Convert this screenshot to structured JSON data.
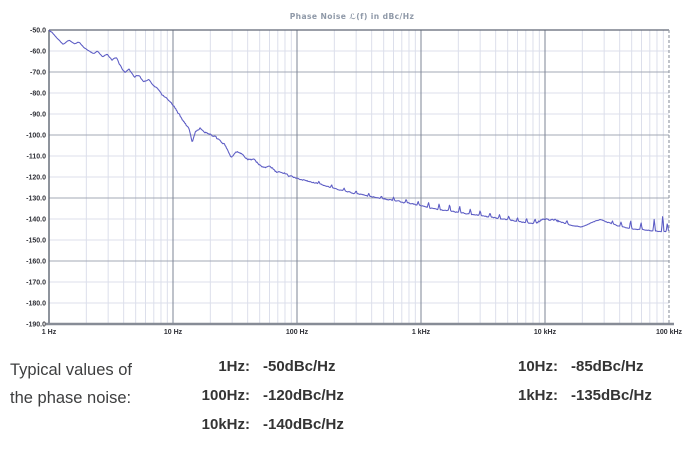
{
  "chart_data": {
    "type": "line",
    "title": "Phase Noise ℒ(f) in dBc/Hz",
    "xscale": "log",
    "xlim_hz": [
      1,
      100000
    ],
    "ylim_dbc": [
      -190,
      -50
    ],
    "grid": "on",
    "legend": "none",
    "x_ticks": [
      {
        "hz": 1,
        "label": "1 Hz"
      },
      {
        "hz": 10,
        "label": "10 Hz"
      },
      {
        "hz": 100,
        "label": "100 Hz"
      },
      {
        "hz": 1000,
        "label": "1 kHz"
      },
      {
        "hz": 10000,
        "label": "10 kHz"
      },
      {
        "hz": 100000,
        "label": "100 kHz"
      }
    ],
    "y_ticks": [
      {
        "value": -50,
        "label": "-50.0"
      },
      {
        "value": -60,
        "label": "-60.0"
      },
      {
        "value": -70,
        "label": "-70.0"
      },
      {
        "value": -80,
        "label": "-80.0"
      },
      {
        "value": -90,
        "label": "-90.0"
      },
      {
        "value": -100,
        "label": "-100.0"
      },
      {
        "value": -110,
        "label": "-110.0"
      },
      {
        "value": -120,
        "label": "-120.0"
      },
      {
        "value": -130,
        "label": "-130.0"
      },
      {
        "value": -140,
        "label": "-140.0"
      },
      {
        "value": -150,
        "label": "-150.0"
      },
      {
        "value": -160,
        "label": "-160.0"
      },
      {
        "value": -170,
        "label": "-170.0"
      },
      {
        "value": -180,
        "label": "-180.0"
      },
      {
        "value": -190,
        "label": "-190.0"
      }
    ],
    "major_hline_values": [
      -70,
      -100,
      -130,
      -160
    ],
    "colors": {
      "trace": "#5b5bc4",
      "grid_minor": "#dcdfeb",
      "grid_major": "#a3a8b5",
      "grid_decade": "#7d8495",
      "frame": "#5f6673",
      "baseline": "#878c96",
      "right_dashed": "#989ea8",
      "tick_text": "#2e2f36",
      "title_text": "#8f99a8"
    },
    "series": [
      {
        "name": "phase noise trace",
        "color": "#5b5bc4",
        "points_hz_dbc": [
          [
            1.0,
            -50.3
          ],
          [
            1.05,
            -51.0
          ],
          [
            1.15,
            -53.5
          ],
          [
            1.3,
            -56.8
          ],
          [
            1.45,
            -54.8
          ],
          [
            1.6,
            -56.6
          ],
          [
            1.75,
            -55.8
          ],
          [
            1.9,
            -58.2
          ],
          [
            2.1,
            -60.0
          ],
          [
            2.3,
            -61.2
          ],
          [
            2.45,
            -60.0
          ],
          [
            2.7,
            -62.6
          ],
          [
            2.95,
            -61.6
          ],
          [
            3.2,
            -64.3
          ],
          [
            3.5,
            -63.3
          ],
          [
            3.8,
            -67.5
          ],
          [
            4.1,
            -70.3
          ],
          [
            4.4,
            -68.4
          ],
          [
            4.9,
            -72.4
          ],
          [
            5.3,
            -71.4
          ],
          [
            5.8,
            -74.8
          ],
          [
            6.4,
            -73.8
          ],
          [
            6.9,
            -76.4
          ],
          [
            7.5,
            -77.9
          ],
          [
            8.2,
            -80.8
          ],
          [
            9.0,
            -82.8
          ],
          [
            10.0,
            -85.6
          ],
          [
            11.0,
            -89.5
          ],
          [
            12.5,
            -94.5
          ],
          [
            13.5,
            -97.0
          ],
          [
            14.3,
            -103.6
          ],
          [
            15.2,
            -98.2
          ],
          [
            16.5,
            -96.8
          ],
          [
            18.0,
            -98.6
          ],
          [
            20.0,
            -99.8
          ],
          [
            23.0,
            -102.0
          ],
          [
            26.0,
            -104.4
          ],
          [
            29.5,
            -110.8
          ],
          [
            33.0,
            -107.6
          ],
          [
            36.0,
            -109.0
          ],
          [
            40.0,
            -112.0
          ],
          [
            45.0,
            -111.6
          ],
          [
            52.0,
            -115.4
          ],
          [
            60.0,
            -114.6
          ],
          [
            67.0,
            -117.4
          ],
          [
            78.0,
            -118.2
          ],
          [
            90.0,
            -119.6
          ],
          [
            100.0,
            -120.6
          ],
          [
            115.0,
            -121.6
          ],
          [
            130.0,
            -122.4
          ],
          [
            155.0,
            -123.4
          ],
          [
            185.0,
            -125.0
          ],
          [
            220.0,
            -126.0
          ],
          [
            270.0,
            -127.4
          ],
          [
            330.0,
            -128.4
          ],
          [
            400.0,
            -129.4
          ],
          [
            500.0,
            -130.4
          ],
          [
            620.0,
            -131.4
          ],
          [
            780.0,
            -132.4
          ],
          [
            1000.0,
            -133.6
          ],
          [
            1250.0,
            -135.0
          ],
          [
            1600.0,
            -136.0
          ],
          [
            2000.0,
            -136.8
          ],
          [
            2500.0,
            -137.6
          ],
          [
            3200.0,
            -138.6
          ],
          [
            4000.0,
            -139.5
          ],
          [
            5000.0,
            -140.3
          ],
          [
            6300.0,
            -141.3
          ],
          [
            8000.0,
            -142.2
          ],
          [
            9000.0,
            -141.2
          ],
          [
            10000.0,
            -140.2
          ],
          [
            11500.0,
            -139.9
          ],
          [
            13000.0,
            -141.2
          ],
          [
            16000.0,
            -142.9
          ],
          [
            20000.0,
            -143.8
          ],
          [
            24000.0,
            -141.6
          ],
          [
            28000.0,
            -140.2
          ],
          [
            33000.0,
            -141.9
          ],
          [
            40000.0,
            -143.4
          ],
          [
            50000.0,
            -144.6
          ],
          [
            63000.0,
            -145.2
          ],
          [
            80000.0,
            -145.8
          ],
          [
            100000.0,
            -146.2
          ]
        ],
        "spurs_hz_db": [
          [
            150,
            1.2
          ],
          [
            190,
            1.3
          ],
          [
            240,
            1.2
          ],
          [
            300,
            1.4
          ],
          [
            380,
            1.3
          ],
          [
            480,
            1.5
          ],
          [
            600,
            1.6
          ],
          [
            760,
            1.8
          ],
          [
            950,
            2.0
          ],
          [
            1150,
            2.6
          ],
          [
            1400,
            3.0
          ],
          [
            1700,
            3.4
          ],
          [
            2050,
            3.0
          ],
          [
            2500,
            2.6
          ],
          [
            3000,
            2.4
          ],
          [
            3600,
            2.0
          ],
          [
            4300,
            2.0
          ],
          [
            5100,
            2.0
          ],
          [
            6000,
            2.0
          ],
          [
            7100,
            2.4
          ],
          [
            8300,
            2.0
          ],
          [
            15000,
            1.8
          ],
          [
            35000,
            1.6
          ],
          [
            41000,
            2.0
          ],
          [
            49000,
            4.0
          ],
          [
            59500,
            3.5
          ],
          [
            76000,
            6.0
          ],
          [
            89000,
            8.0
          ],
          [
            97000,
            4.5
          ]
        ],
        "noise_bands_hz_db": [
          [
            1,
            3,
            0.35
          ],
          [
            3,
            10,
            0.6
          ],
          [
            10,
            100,
            1.0
          ],
          [
            100,
            1000,
            0.55
          ],
          [
            1000,
            8000,
            0.5
          ],
          [
            8000,
            13000,
            1.4
          ],
          [
            13000,
            100000,
            0.4
          ]
        ]
      }
    ],
    "typical_values_note": {
      "1Hz": "-50dBc/Hz",
      "10Hz": "-85dBc/Hz",
      "100Hz": "-120dBc/Hz",
      "1kHz": "-135dBc/Hz",
      "10kHz": "-140dBc/Hz"
    }
  },
  "typical_values": {
    "caption_line1": "Typical values of",
    "caption_line2": "the phase noise:",
    "column1": [
      {
        "freq": "1Hz:",
        "value": "-50dBc/Hz"
      },
      {
        "freq": "100Hz:",
        "value": "-120dBc/Hz"
      },
      {
        "freq": "10kHz:",
        "value": "-140dBc/Hz"
      }
    ],
    "column2": [
      {
        "freq": "10Hz:",
        "value": "-85dBc/Hz"
      },
      {
        "freq": "1kHz:",
        "value": "-135dBc/Hz"
      }
    ]
  }
}
